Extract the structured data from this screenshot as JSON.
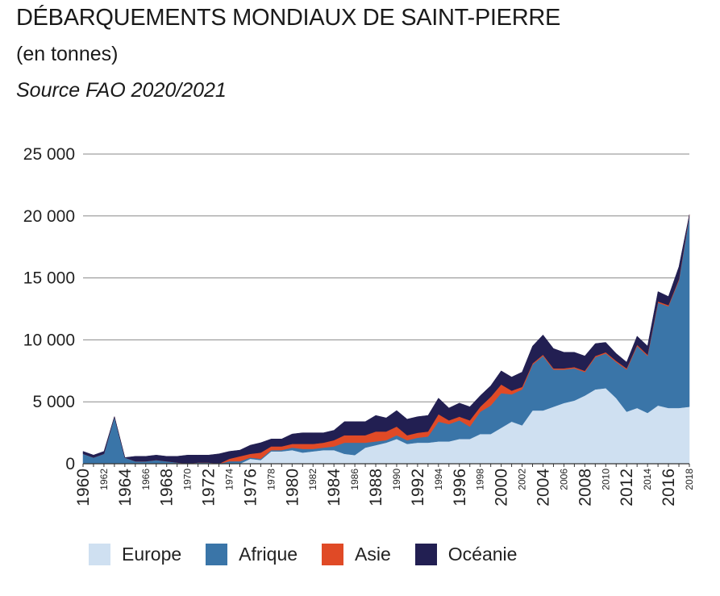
{
  "header": {
    "title": "DÉBARQUEMENTS MONDIAUX DE SAINT-PIERRE",
    "subtitle": "(en tonnes)",
    "source": "Source FAO 2020/2021"
  },
  "chart_data": {
    "type": "area",
    "stacked": true,
    "x": [
      1960,
      1961,
      1962,
      1963,
      1964,
      1965,
      1966,
      1967,
      1968,
      1969,
      1970,
      1971,
      1972,
      1973,
      1974,
      1975,
      1976,
      1977,
      1978,
      1979,
      1980,
      1981,
      1982,
      1983,
      1984,
      1985,
      1986,
      1987,
      1988,
      1989,
      1990,
      1991,
      1992,
      1993,
      1994,
      1995,
      1996,
      1997,
      1998,
      1999,
      2000,
      2001,
      2002,
      2003,
      2004,
      2005,
      2006,
      2007,
      2008,
      2009,
      2010,
      2011,
      2012,
      2013,
      2014,
      2015,
      2016,
      2017,
      2018
    ],
    "x_tick_labels": [
      {
        "label": "1960",
        "size": "large"
      },
      {
        "label": "1962",
        "size": "small"
      },
      {
        "label": "1964",
        "size": "large"
      },
      {
        "label": "1966",
        "size": "small"
      },
      {
        "label": "1968",
        "size": "large"
      },
      {
        "label": "1970",
        "size": "small"
      },
      {
        "label": "1972",
        "size": "large"
      },
      {
        "label": "1974",
        "size": "small"
      },
      {
        "label": "1976",
        "size": "large"
      },
      {
        "label": "1978",
        "size": "small"
      },
      {
        "label": "1980",
        "size": "large"
      },
      {
        "label": "1982",
        "size": "small"
      },
      {
        "label": "1984",
        "size": "large"
      },
      {
        "label": "1986",
        "size": "small"
      },
      {
        "label": "1988",
        "size": "large"
      },
      {
        "label": "1990",
        "size": "small"
      },
      {
        "label": "1992",
        "size": "large"
      },
      {
        "label": "1994",
        "size": "small"
      },
      {
        "label": "1996",
        "size": "large"
      },
      {
        "label": "1998",
        "size": "small"
      },
      {
        "label": "2000",
        "size": "large"
      },
      {
        "label": "2002",
        "size": "small"
      },
      {
        "label": "2004",
        "size": "large"
      },
      {
        "label": "2006",
        "size": "small"
      },
      {
        "label": "2008",
        "size": "large"
      },
      {
        "label": "2010",
        "size": "small"
      },
      {
        "label": "2012",
        "size": "large"
      },
      {
        "label": "2014",
        "size": "small"
      },
      {
        "label": "2016",
        "size": "large"
      },
      {
        "label": "2018",
        "size": "small"
      }
    ],
    "y_ticks": [
      0,
      5000,
      10000,
      15000,
      20000,
      25000
    ],
    "y_tick_labels": [
      "0",
      "5 000",
      "10 000",
      "15 000",
      "20 000",
      "25 000"
    ],
    "ylim": [
      0,
      25000
    ],
    "grid": "horizontal",
    "legend_position": "bottom",
    "series": [
      {
        "name": "Europe",
        "color": "#cfe0f1",
        "values": [
          0,
          0,
          0,
          0,
          0,
          0,
          0,
          0,
          0,
          0,
          0,
          0,
          0,
          0,
          0,
          0,
          400,
          300,
          1000,
          1000,
          1100,
          900,
          1000,
          1100,
          1100,
          800,
          700,
          1300,
          1500,
          1700,
          2000,
          1600,
          1700,
          1700,
          1800,
          1800,
          2000,
          2000,
          2400,
          2400,
          2900,
          3400,
          3100,
          4300,
          4300,
          4600,
          4900,
          5100,
          5500,
          6000,
          6100,
          5300,
          4200,
          4500,
          4100,
          4700,
          4500,
          4500,
          4600
        ]
      },
      {
        "name": "Afrique",
        "color": "#3a75a8",
        "values": [
          800,
          500,
          800,
          3800,
          500,
          200,
          200,
          300,
          200,
          100,
          0,
          100,
          100,
          0,
          200,
          200,
          100,
          100,
          100,
          100,
          200,
          300,
          200,
          200,
          300,
          900,
          1000,
          400,
          300,
          200,
          300,
          300,
          400,
          500,
          1600,
          1400,
          1500,
          1000,
          1800,
          2300,
          2800,
          2200,
          2900,
          3700,
          4400,
          3000,
          2700,
          2600,
          1900,
          2600,
          2800,
          2900,
          3400,
          5000,
          4600,
          8300,
          8200,
          10300,
          15400
        ]
      },
      {
        "name": "Asie",
        "color": "#e04a26",
        "values": [
          0,
          0,
          0,
          0,
          0,
          0,
          0,
          0,
          0,
          0,
          0,
          0,
          0,
          0,
          200,
          400,
          300,
          500,
          300,
          300,
          300,
          400,
          400,
          400,
          500,
          600,
          600,
          600,
          800,
          700,
          700,
          400,
          400,
          400,
          600,
          300,
          300,
          500,
          400,
          700,
          700,
          300,
          200,
          100,
          100,
          100,
          100,
          100,
          100,
          100,
          100,
          100,
          100,
          100,
          100,
          100,
          100,
          100,
          100
        ]
      },
      {
        "name": "Océanie",
        "color": "#221f52",
        "values": [
          200,
          200,
          200,
          0,
          0,
          400,
          400,
          400,
          400,
          500,
          700,
          600,
          600,
          800,
          600,
          500,
          700,
          800,
          600,
          600,
          800,
          900,
          900,
          800,
          800,
          1100,
          1100,
          1100,
          1300,
          1100,
          1300,
          1300,
          1300,
          1300,
          1300,
          1000,
          1100,
          1100,
          900,
          900,
          1100,
          1100,
          1200,
          1400,
          1600,
          1600,
          1300,
          1200,
          1200,
          1000,
          800,
          600,
          500,
          700,
          700,
          800,
          700,
          1000,
          0
        ]
      }
    ]
  }
}
